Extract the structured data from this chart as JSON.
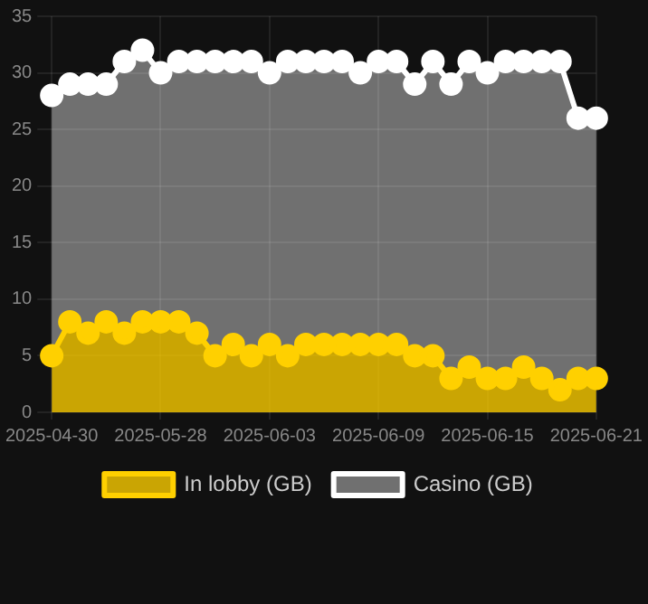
{
  "chart_data": {
    "type": "area",
    "categories": [
      "2025-04-30",
      null,
      null,
      null,
      null,
      null,
      "2025-05-28",
      null,
      null,
      null,
      null,
      null,
      "2025-06-03",
      null,
      null,
      null,
      null,
      null,
      "2025-06-09",
      null,
      null,
      null,
      null,
      null,
      "2025-06-15",
      null,
      null,
      null,
      null,
      null,
      "2025-06-21"
    ],
    "series": [
      {
        "name": "In lobby (GB)",
        "color": "#ffd000",
        "values": [
          5,
          8,
          7,
          8,
          7,
          8,
          8,
          8,
          7,
          5,
          6,
          5,
          6,
          5,
          6,
          6,
          6,
          6,
          6,
          6,
          5,
          5,
          3,
          4,
          3,
          3,
          4,
          3,
          2,
          3,
          3
        ]
      },
      {
        "name": "Casino (GB)",
        "color": "#ffffff",
        "values": [
          28,
          29,
          29,
          29,
          31,
          32,
          30,
          31,
          31,
          31,
          31,
          31,
          30,
          31,
          31,
          31,
          31,
          30,
          31,
          31,
          29,
          31,
          29,
          31,
          30,
          31,
          31,
          31,
          31,
          26,
          26
        ]
      }
    ],
    "ylim": [
      0,
      35
    ],
    "yticks": [
      0,
      5,
      10,
      15,
      20,
      25,
      30,
      35
    ],
    "grid": true,
    "legend": "bottom",
    "marker": "circle",
    "line_style": "solid"
  }
}
